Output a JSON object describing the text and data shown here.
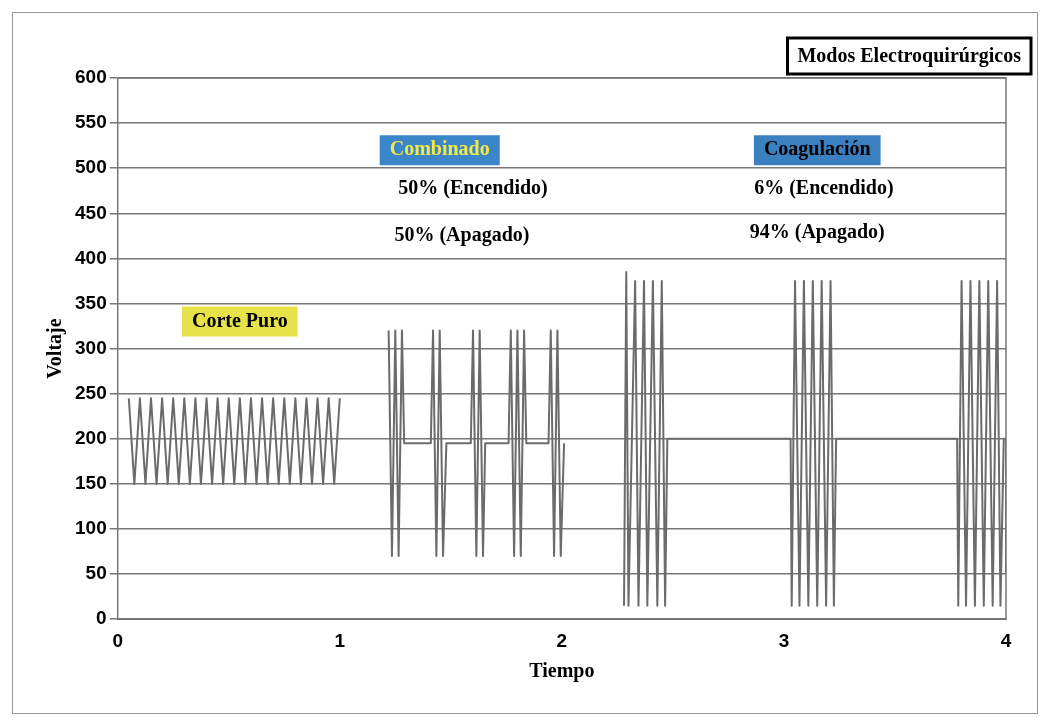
{
  "chart_data": {
    "type": "line",
    "title": "Modos Electroquirúrgicos",
    "xlabel": "Tiempo",
    "ylabel": "Voltaje",
    "xlim": [
      0,
      4
    ],
    "xticks": [
      0,
      1,
      2,
      3,
      4
    ],
    "ylim": [
      0,
      600
    ],
    "yticks": [
      0,
      50,
      100,
      150,
      200,
      250,
      300,
      350,
      400,
      450,
      500,
      550,
      600
    ],
    "grid": "y",
    "legend": false,
    "marker": "none",
    "line_style": "solid",
    "series": [
      {
        "color": "#6b6b6b",
        "x": [
          0.05,
          0.075,
          0.1,
          0.125,
          0.15,
          0.175,
          0.2,
          0.225,
          0.25,
          0.275,
          0.3,
          0.325,
          0.35,
          0.375,
          0.4,
          0.425,
          0.45,
          0.475,
          0.5,
          0.525,
          0.55,
          0.575,
          0.6,
          0.625,
          0.65,
          0.675,
          0.7,
          0.725,
          0.75,
          0.775,
          0.8,
          0.825,
          0.85,
          0.875,
          0.9,
          0.925,
          0.95,
          0.975,
          1.0,
          1.1,
          1.22,
          1.235,
          1.25,
          1.265,
          1.28,
          1.29,
          1.41,
          1.42,
          1.435,
          1.45,
          1.465,
          1.48,
          1.59,
          1.6,
          1.615,
          1.63,
          1.645,
          1.655,
          1.76,
          1.77,
          1.785,
          1.8,
          1.815,
          1.83,
          1.84,
          1.94,
          1.95,
          1.965,
          1.98,
          1.995,
          2.01,
          2.15,
          2.28,
          2.29,
          2.3,
          2.33,
          2.345,
          2.37,
          2.385,
          2.41,
          2.43,
          2.45,
          2.465,
          2.475,
          3.03,
          3.035,
          3.05,
          3.07,
          3.09,
          3.11,
          3.13,
          3.15,
          3.17,
          3.19,
          3.21,
          3.225,
          3.235,
          3.78,
          3.785,
          3.8,
          3.82,
          3.84,
          3.86,
          3.88,
          3.9,
          3.92,
          3.94,
          3.96,
          3.975,
          3.99,
          4.0,
          4.0
        ],
        "values": [
          245,
          150,
          245,
          150,
          245,
          150,
          245,
          150,
          245,
          150,
          245,
          150,
          245,
          150,
          245,
          150,
          245,
          150,
          245,
          150,
          245,
          150,
          245,
          150,
          245,
          150,
          245,
          150,
          245,
          150,
          245,
          150,
          245,
          150,
          245,
          150,
          245,
          150,
          245,
          null,
          320,
          70,
          320,
          70,
          320,
          195,
          195,
          320,
          70,
          320,
          70,
          195,
          195,
          320,
          70,
          320,
          70,
          195,
          195,
          320,
          70,
          320,
          70,
          320,
          195,
          195,
          320,
          70,
          320,
          70,
          195,
          null,
          15,
          385,
          15,
          375,
          15,
          375,
          15,
          375,
          15,
          375,
          15,
          200,
          200,
          15,
          375,
          15,
          375,
          15,
          375,
          15,
          375,
          15,
          375,
          15,
          200,
          200,
          15,
          375,
          15,
          375,
          15,
          375,
          15,
          375,
          15,
          375,
          15,
          200,
          200,
          50
        ]
      }
    ],
    "annotations": [
      "Corte Puro",
      "Combinado",
      "50% (Encendido)",
      "50% (Apagado)",
      "Coagulación",
      "6% (Encendido)",
      "94% (Apagado)"
    ]
  }
}
